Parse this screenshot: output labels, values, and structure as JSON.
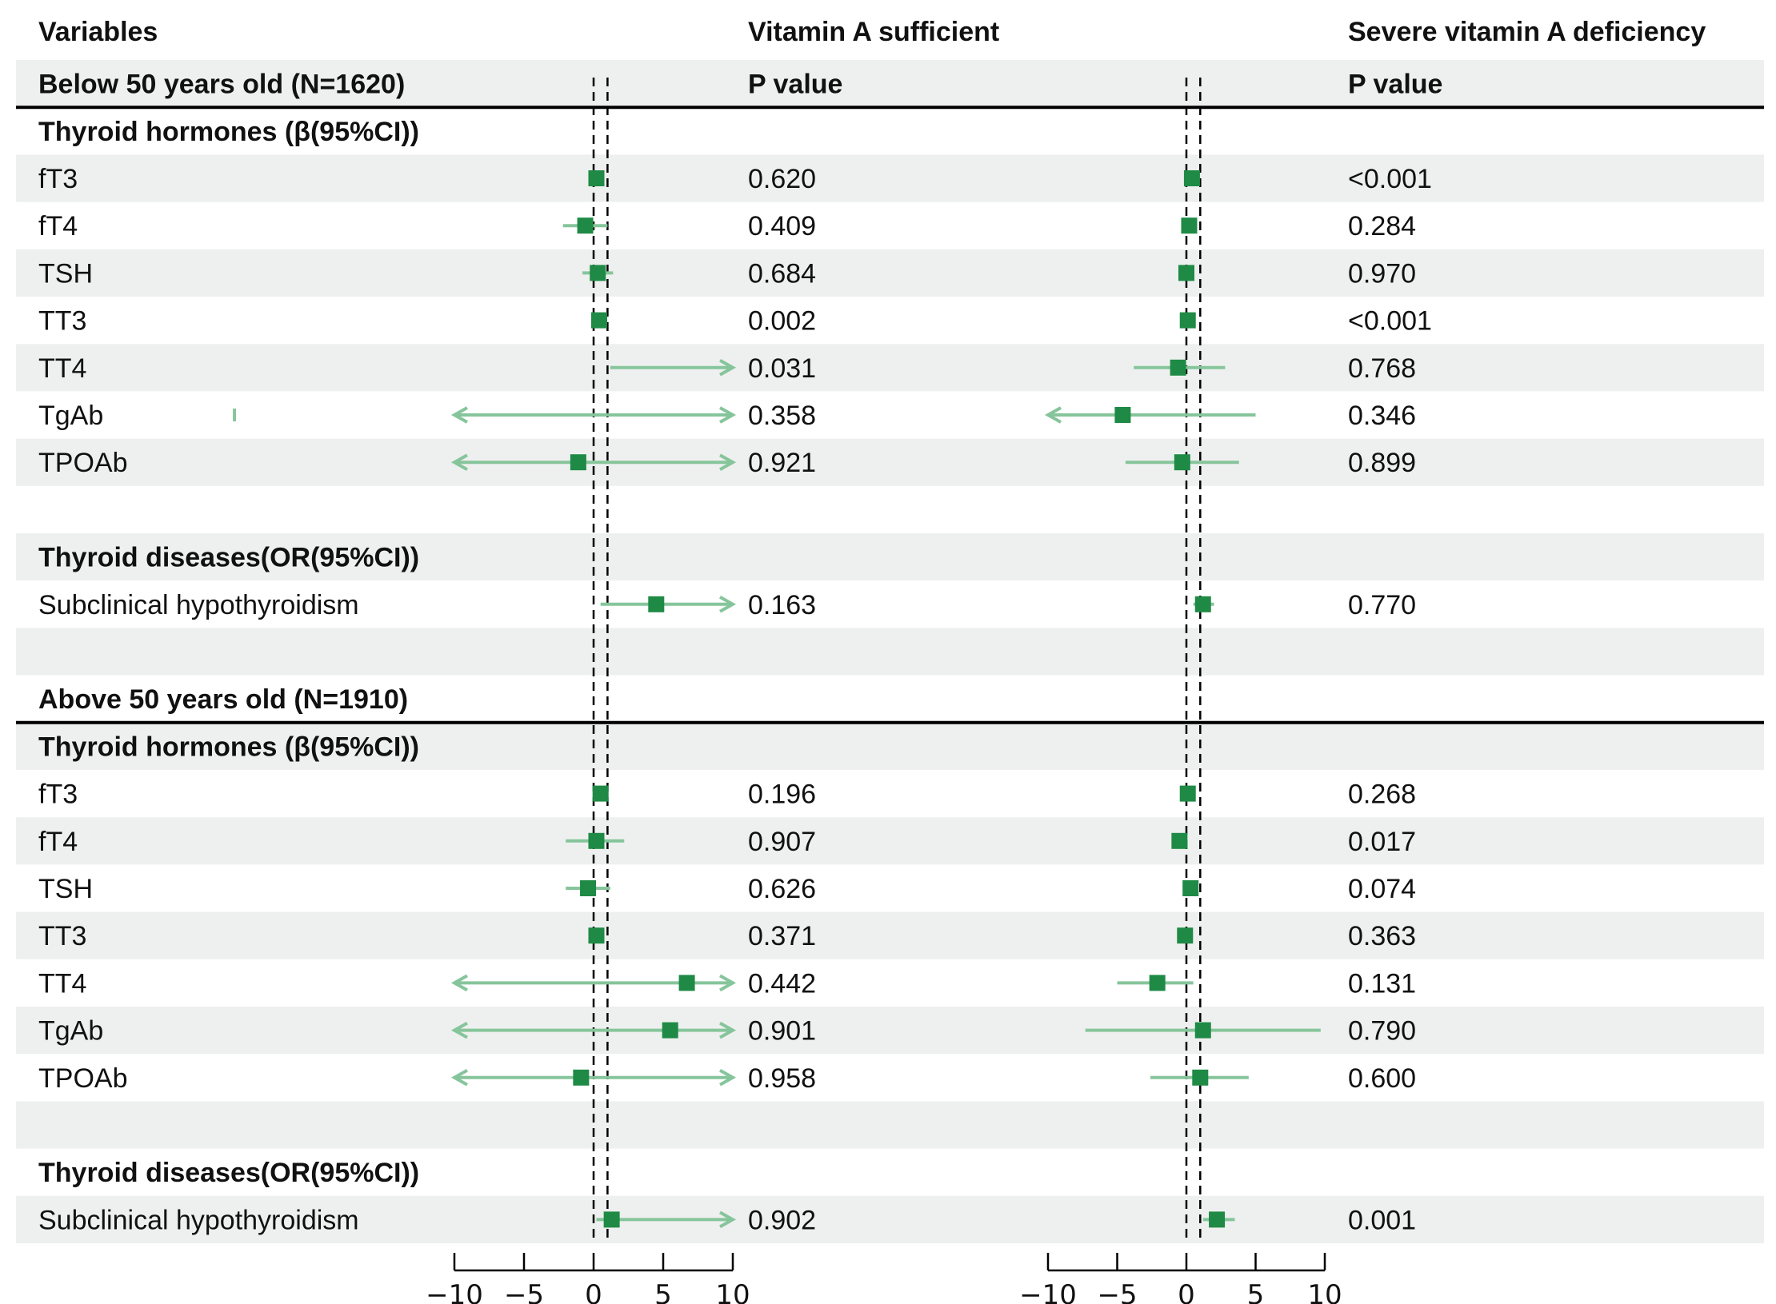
{
  "headers": {
    "variables": "Variables",
    "col1": "Vitamin A sufficient",
    "col2": "Severe vitamin A deficiency",
    "p1": "P value",
    "p2": "P value"
  },
  "colors": {
    "band": "#eef0ef",
    "point": "#1f8a45",
    "ci": "#86c59b",
    "ref": "#000000"
  },
  "chart_data": {
    "type": "forest",
    "xlim": [
      -10,
      10
    ],
    "ticks": [
      -10,
      -5,
      0,
      5,
      10
    ],
    "tick_labels": [
      "−10",
      "−5",
      "0",
      "5",
      "10"
    ],
    "reference_lines": [
      0,
      1
    ],
    "panels": [
      "Vitamin A sufficient",
      "Severe vitamin A deficiency"
    ],
    "rows": [
      {
        "label": "Below 50 years old (N=1620)",
        "kind": "group",
        "band": true,
        "p1": "P value",
        "p2": "P value"
      },
      {
        "label": "Thyroid hormones (β(95%CI))",
        "kind": "section",
        "band": false
      },
      {
        "label": "fT3",
        "kind": "item",
        "band": true,
        "p1": "0.620",
        "p2": "<0.001",
        "c1": {
          "est": 0.2,
          "lo": -0.2,
          "hi": 0.6
        },
        "c2": {
          "est": 0.4,
          "lo": 0.1,
          "hi": 0.8
        }
      },
      {
        "label": "fT4",
        "kind": "item",
        "band": false,
        "p1": "0.409",
        "p2": "0.284",
        "c1": {
          "est": -0.6,
          "lo": -2.2,
          "hi": 1.0
        },
        "c2": {
          "est": 0.2,
          "lo": -0.2,
          "hi": 0.6
        }
      },
      {
        "label": "TSH",
        "kind": "item",
        "band": true,
        "p1": "0.684",
        "p2": "0.970",
        "c1": {
          "est": 0.3,
          "lo": -0.8,
          "hi": 1.4
        },
        "c2": {
          "est": 0.0,
          "lo": -0.3,
          "hi": 0.3
        }
      },
      {
        "label": "TT3",
        "kind": "item",
        "band": false,
        "p1": "0.002",
        "p2": "<0.001",
        "c1": {
          "est": 0.4,
          "lo": 0.1,
          "hi": 0.8
        },
        "c2": {
          "est": 0.1,
          "lo": -0.2,
          "hi": 0.4
        }
      },
      {
        "label": "TT4",
        "kind": "item",
        "band": true,
        "p1": "0.031",
        "p2": "0.768",
        "c1": {
          "est": null,
          "lo": 1.2,
          "hi": 10,
          "arrow_hi": true
        },
        "c2": {
          "est": -0.6,
          "lo": -3.8,
          "hi": 2.8
        }
      },
      {
        "label": "TgAb",
        "kind": "item",
        "band": false,
        "p1": "0.358",
        "p2": "0.346",
        "c1": {
          "est": -25.8,
          "lo": -10,
          "hi": 10,
          "arrow_lo": true,
          "arrow_hi": true
        },
        "c2": {
          "est": -4.6,
          "lo": -10,
          "hi": 5.0,
          "arrow_lo": true
        }
      },
      {
        "label": "TPOAb",
        "kind": "item",
        "band": true,
        "p1": "0.921",
        "p2": "0.899",
        "c1": {
          "est": -1.1,
          "lo": -10,
          "hi": 10,
          "arrow_lo": true,
          "arrow_hi": true
        },
        "c2": {
          "est": -0.3,
          "lo": -4.4,
          "hi": 3.8
        }
      },
      {
        "label": "",
        "kind": "blank",
        "band": false
      },
      {
        "label": "Thyroid diseases(OR(95%CI))",
        "kind": "section",
        "band": true
      },
      {
        "label": "Subclinical hypothyroidism",
        "kind": "item",
        "band": false,
        "p1": "0.163",
        "p2": "0.770",
        "c1": {
          "est": 4.5,
          "lo": 0.5,
          "hi": 10,
          "arrow_hi": true
        },
        "c2": {
          "est": 1.2,
          "lo": 0.5,
          "hi": 2.0
        }
      },
      {
        "label": "",
        "kind": "blank",
        "band": true
      },
      {
        "label": "Above 50 years old (N=1910)",
        "kind": "group",
        "band": false
      },
      {
        "label": "Thyroid hormones (β(95%CI))",
        "kind": "section",
        "band": true
      },
      {
        "label": "fT3",
        "kind": "item",
        "band": false,
        "p1": "0.196",
        "p2": "0.268",
        "c1": {
          "est": 0.5,
          "lo": 0.1,
          "hi": 0.9
        },
        "c2": {
          "est": 0.1,
          "lo": -0.2,
          "hi": 0.4
        }
      },
      {
        "label": "fT4",
        "kind": "item",
        "band": true,
        "p1": "0.907",
        "p2": "0.017",
        "c1": {
          "est": 0.2,
          "lo": -2.0,
          "hi": 2.2
        },
        "c2": {
          "est": -0.5,
          "lo": -0.9,
          "hi": -0.1
        }
      },
      {
        "label": "TSH",
        "kind": "item",
        "band": false,
        "p1": "0.626",
        "p2": "0.074",
        "c1": {
          "est": -0.4,
          "lo": -2.0,
          "hi": 1.2
        },
        "c2": {
          "est": 0.3,
          "lo": -0.1,
          "hi": 0.7
        }
      },
      {
        "label": "TT3",
        "kind": "item",
        "band": true,
        "p1": "0.371",
        "p2": "0.363",
        "c1": {
          "est": 0.2,
          "lo": -0.2,
          "hi": 0.6
        },
        "c2": {
          "est": -0.1,
          "lo": -0.4,
          "hi": 0.2
        }
      },
      {
        "label": "TT4",
        "kind": "item",
        "band": false,
        "p1": "0.442",
        "p2": "0.131",
        "c1": {
          "est": 6.7,
          "lo": -10,
          "hi": 10,
          "arrow_lo": true,
          "arrow_hi": true
        },
        "c2": {
          "est": -2.1,
          "lo": -5.0,
          "hi": 0.5
        }
      },
      {
        "label": "TgAb",
        "kind": "item",
        "band": true,
        "p1": "0.901",
        "p2": "0.790",
        "c1": {
          "est": 5.5,
          "lo": -10,
          "hi": 10,
          "arrow_lo": true,
          "arrow_hi": true
        },
        "c2": {
          "est": 1.2,
          "lo": -7.3,
          "hi": 9.7
        }
      },
      {
        "label": "TPOAb",
        "kind": "item",
        "band": false,
        "p1": "0.958",
        "p2": "0.600",
        "c1": {
          "est": -0.9,
          "lo": -10,
          "hi": 10,
          "arrow_lo": true,
          "arrow_hi": true
        },
        "c2": {
          "est": 1.0,
          "lo": -2.6,
          "hi": 4.5
        }
      },
      {
        "label": "",
        "kind": "blank",
        "band": true
      },
      {
        "label": "Thyroid diseases(OR(95%CI))",
        "kind": "section",
        "band": false
      },
      {
        "label": "Subclinical hypothyroidism",
        "kind": "item",
        "band": true,
        "p1": "0.902",
        "p2": "0.001",
        "c1": {
          "est": 1.3,
          "lo": 0.2,
          "hi": 10,
          "arrow_hi": true
        },
        "c2": {
          "est": 2.2,
          "lo": 1.2,
          "hi": 3.5
        }
      }
    ]
  }
}
